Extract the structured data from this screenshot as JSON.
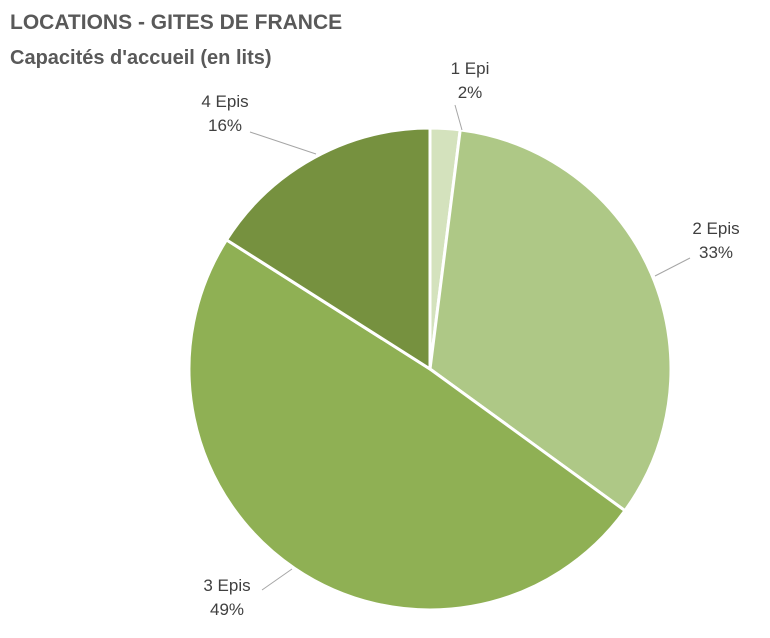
{
  "chart_data": {
    "type": "pie",
    "title": "LOCATIONS - GITES DE FRANCE",
    "subtitle": "Capacités d'accueil (en lits)",
    "categories": [
      "1 Epi",
      "2 Epis",
      "3 Epis",
      "4 Epis"
    ],
    "values": [
      2,
      33,
      49,
      16
    ],
    "value_labels": [
      "2%",
      "33%",
      "49%",
      "16%"
    ],
    "colors": [
      "#d4e2bd",
      "#aec886",
      "#8fb054",
      "#76913f"
    ],
    "start_angle_deg": 0,
    "direction": "clockwise",
    "legend": "none",
    "data_labels": "outside-with-leader-lines"
  }
}
